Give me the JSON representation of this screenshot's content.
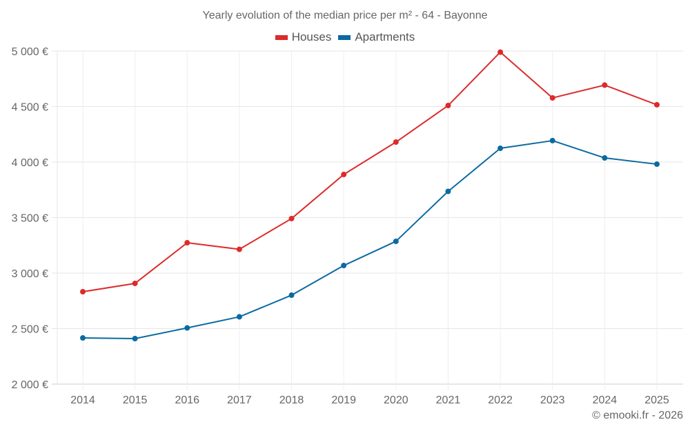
{
  "chart_data": {
    "type": "line",
    "title": "Yearly evolution of the median price per m² - 64 - Bayonne",
    "x": [
      "2014",
      "2015",
      "2016",
      "2017",
      "2018",
      "2019",
      "2020",
      "2021",
      "2022",
      "2023",
      "2024",
      "2025"
    ],
    "series": [
      {
        "name": "Houses",
        "color": "#dd2a2a",
        "values": [
          2832,
          2907,
          3273,
          3214,
          3491,
          3888,
          4180,
          4509,
          4990,
          4578,
          4693,
          4516
        ]
      },
      {
        "name": "Apartments",
        "color": "#0a6aa1",
        "values": [
          2416,
          2410,
          2506,
          2606,
          2801,
          3068,
          3286,
          3736,
          4124,
          4193,
          4037,
          3981
        ]
      }
    ],
    "xlabel": "",
    "ylabel": "",
    "ylim": [
      2000,
      5000
    ],
    "yticks": [
      2000,
      2500,
      3000,
      3500,
      4000,
      4500,
      5000
    ],
    "ytick_labels": [
      "2 000 €",
      "2 500 €",
      "3 000 €",
      "3 500 €",
      "4 000 €",
      "4 500 €",
      "5 000 €"
    ],
    "grid": true,
    "legend_position": "top-center"
  },
  "credit": "© emooki.fr - 2026"
}
